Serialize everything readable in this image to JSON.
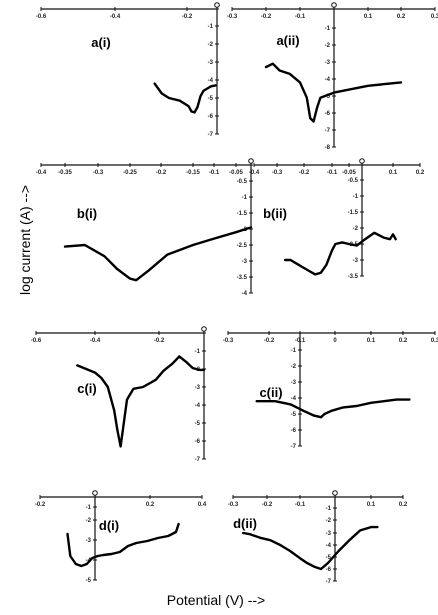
{
  "ylabel": "log current (A) -->",
  "xlabel": "Potential (V) -->",
  "chart_data": [
    {
      "type": "line",
      "label": "a(i)",
      "xticks": [
        "-0.6",
        "-0.4",
        "-0.2",
        "0"
      ],
      "yticks": [
        "0",
        "-1",
        "-2",
        "-3",
        "-4",
        "-5",
        "-6",
        "-7"
      ],
      "x": [
        -0.29,
        -0.27,
        -0.25,
        -0.22,
        -0.19,
        -0.17,
        -0.15,
        -0.13,
        -0.11,
        -0.09,
        -0.07,
        -0.04,
        -0.01
      ],
      "y": [
        -4.2,
        -4.75,
        -5.0,
        -5.15,
        -5.45,
        -5.75,
        -5.8,
        -5.5,
        -4.9,
        -4.6,
        -4.5,
        -4.35,
        -4.3
      ]
    },
    {
      "type": "line",
      "label": "a(ii)",
      "xticks": [
        "-0.3",
        "-0.2",
        "-0.1",
        "0",
        "0.1",
        "0.2",
        "0.3"
      ],
      "yticks": [
        "0",
        "-1",
        "-2",
        "-3",
        "-4",
        "-5",
        "-6",
        "-7",
        "-8"
      ],
      "x": [
        -0.2,
        -0.18,
        -0.16,
        -0.13,
        -0.1,
        -0.08,
        -0.07,
        -0.06,
        -0.05,
        -0.04,
        0.0,
        0.05,
        0.1,
        0.15,
        0.2
      ],
      "y": [
        -3.3,
        -3.1,
        -3.5,
        -3.7,
        -4.2,
        -5.1,
        -6.3,
        -6.5,
        -5.7,
        -5.1,
        -4.8,
        -4.6,
        -4.4,
        -4.3,
        -4.2
      ]
    },
    {
      "type": "line",
      "label": "b(i)",
      "xticks": [
        "-0.4",
        "-0.35",
        "-0.3",
        "-0.25",
        "-0.2",
        "-0.15",
        "-0.1",
        "-0.05",
        "0"
      ],
      "yticks": [
        "0",
        "-0.5",
        "-1",
        "-1.5",
        "-2",
        "-2.5",
        "-3",
        "-3.5",
        "-4"
      ],
      "x": [
        -0.35,
        -0.32,
        -0.29,
        -0.27,
        -0.25,
        -0.24,
        -0.22,
        -0.19,
        -0.15,
        -0.1,
        -0.05,
        0.0
      ],
      "y": [
        -2.55,
        -2.5,
        -2.85,
        -3.25,
        -3.55,
        -3.6,
        -3.3,
        -2.8,
        -2.5,
        -2.3,
        -2.1,
        -1.95
      ]
    },
    {
      "type": "line",
      "label": "b(ii)",
      "xticks": [
        "-0.4",
        "-0.3",
        "-0.2",
        "-0.1",
        "-0.05",
        "0",
        "0.1",
        "0.2"
      ],
      "yticks": [
        "0",
        "-0.5",
        "-1",
        "-1.5",
        "-2",
        "-2.5",
        "-3",
        "-3.5"
      ],
      "x": [
        -0.27,
        -0.25,
        -0.22,
        -0.19,
        -0.16,
        -0.14,
        -0.12,
        -0.1,
        -0.09,
        -0.07,
        -0.05,
        -0.02,
        0.01,
        0.04,
        0.07,
        0.09,
        0.1,
        0.11
      ],
      "y": [
        -3.0,
        -3.0,
        -3.15,
        -3.3,
        -3.45,
        -3.4,
        -3.15,
        -2.7,
        -2.5,
        -2.45,
        -2.5,
        -2.55,
        -2.35,
        -2.15,
        -2.3,
        -2.35,
        -2.2,
        -2.35
      ]
    },
    {
      "type": "line",
      "label": "c(i)",
      "xticks": [
        "-0.6",
        "-0.4",
        "-0.2",
        "0"
      ],
      "yticks": [
        "0",
        "-1",
        "-2",
        "-3",
        "-4",
        "-5",
        "-6",
        "-7"
      ],
      "x": [
        -0.46,
        -0.43,
        -0.4,
        -0.38,
        -0.36,
        -0.34,
        -0.33,
        -0.32,
        -0.31,
        -0.3,
        -0.28,
        -0.25,
        -0.21,
        -0.18,
        -0.14,
        -0.11,
        -0.08,
        -0.05,
        -0.02,
        0.0
      ],
      "y": [
        -1.8,
        -2.0,
        -2.2,
        -2.5,
        -3.0,
        -4.3,
        -5.4,
        -6.3,
        -5.0,
        -3.7,
        -3.1,
        -3.0,
        -2.6,
        -2.1,
        -1.7,
        -1.3,
        -1.6,
        -1.95,
        -2.05,
        -2.05
      ]
    },
    {
      "type": "line",
      "label": "c(ii)",
      "xticks": [
        "-0.3",
        "-0.2",
        "-0.1",
        "0",
        "0.1",
        "0.2",
        "0.3"
      ],
      "yticks": [
        "0",
        "-1",
        "-2",
        "-3",
        "-4",
        "-5",
        "-6",
        "-7"
      ],
      "x": [
        -0.23,
        -0.18,
        -0.13,
        -0.09,
        -0.06,
        -0.04,
        -0.03,
        -0.01,
        0.02,
        0.06,
        0.1,
        0.14,
        0.18,
        0.22
      ],
      "y": [
        -4.2,
        -4.2,
        -4.4,
        -4.8,
        -5.1,
        -5.2,
        -5.0,
        -4.8,
        -4.6,
        -4.5,
        -4.3,
        -4.2,
        -4.1,
        -4.1
      ]
    },
    {
      "type": "line",
      "label": "d(i)",
      "xticks": [
        "-0.2",
        "0",
        "0.2",
        "0.4"
      ],
      "yticks": [
        "0",
        "-1",
        "-2",
        "-3",
        "-4",
        "-5"
      ],
      "x": [
        -0.1,
        -0.09,
        -0.07,
        -0.05,
        -0.03,
        -0.01,
        0.01,
        0.03,
        0.06,
        0.09,
        0.12,
        0.15,
        0.19,
        0.23,
        0.27,
        0.3,
        0.31
      ],
      "y": [
        -2.7,
        -3.8,
        -4.2,
        -4.3,
        -4.2,
        -3.9,
        -3.8,
        -3.75,
        -3.7,
        -3.6,
        -3.3,
        -3.15,
        -3.05,
        -2.9,
        -2.8,
        -2.6,
        -2.2
      ]
    },
    {
      "type": "line",
      "label": "d(ii)",
      "xticks": [
        "-0.3",
        "-0.2",
        "-0.1",
        "0",
        "0.1",
        "0.2"
      ],
      "yticks": [
        "0",
        "-1",
        "-2",
        "-3",
        "-4",
        "-5",
        "-6",
        "-7"
      ],
      "x": [
        -0.27,
        -0.25,
        -0.22,
        -0.19,
        -0.16,
        -0.13,
        -0.1,
        -0.08,
        -0.06,
        -0.04,
        -0.02,
        0.01,
        0.04,
        0.07,
        0.1,
        0.12
      ],
      "y": [
        -3.0,
        -3.1,
        -3.4,
        -3.6,
        -4.0,
        -4.5,
        -5.1,
        -5.5,
        -5.8,
        -6.0,
        -5.5,
        -4.5,
        -3.6,
        -2.8,
        -2.55,
        -2.55
      ]
    }
  ]
}
